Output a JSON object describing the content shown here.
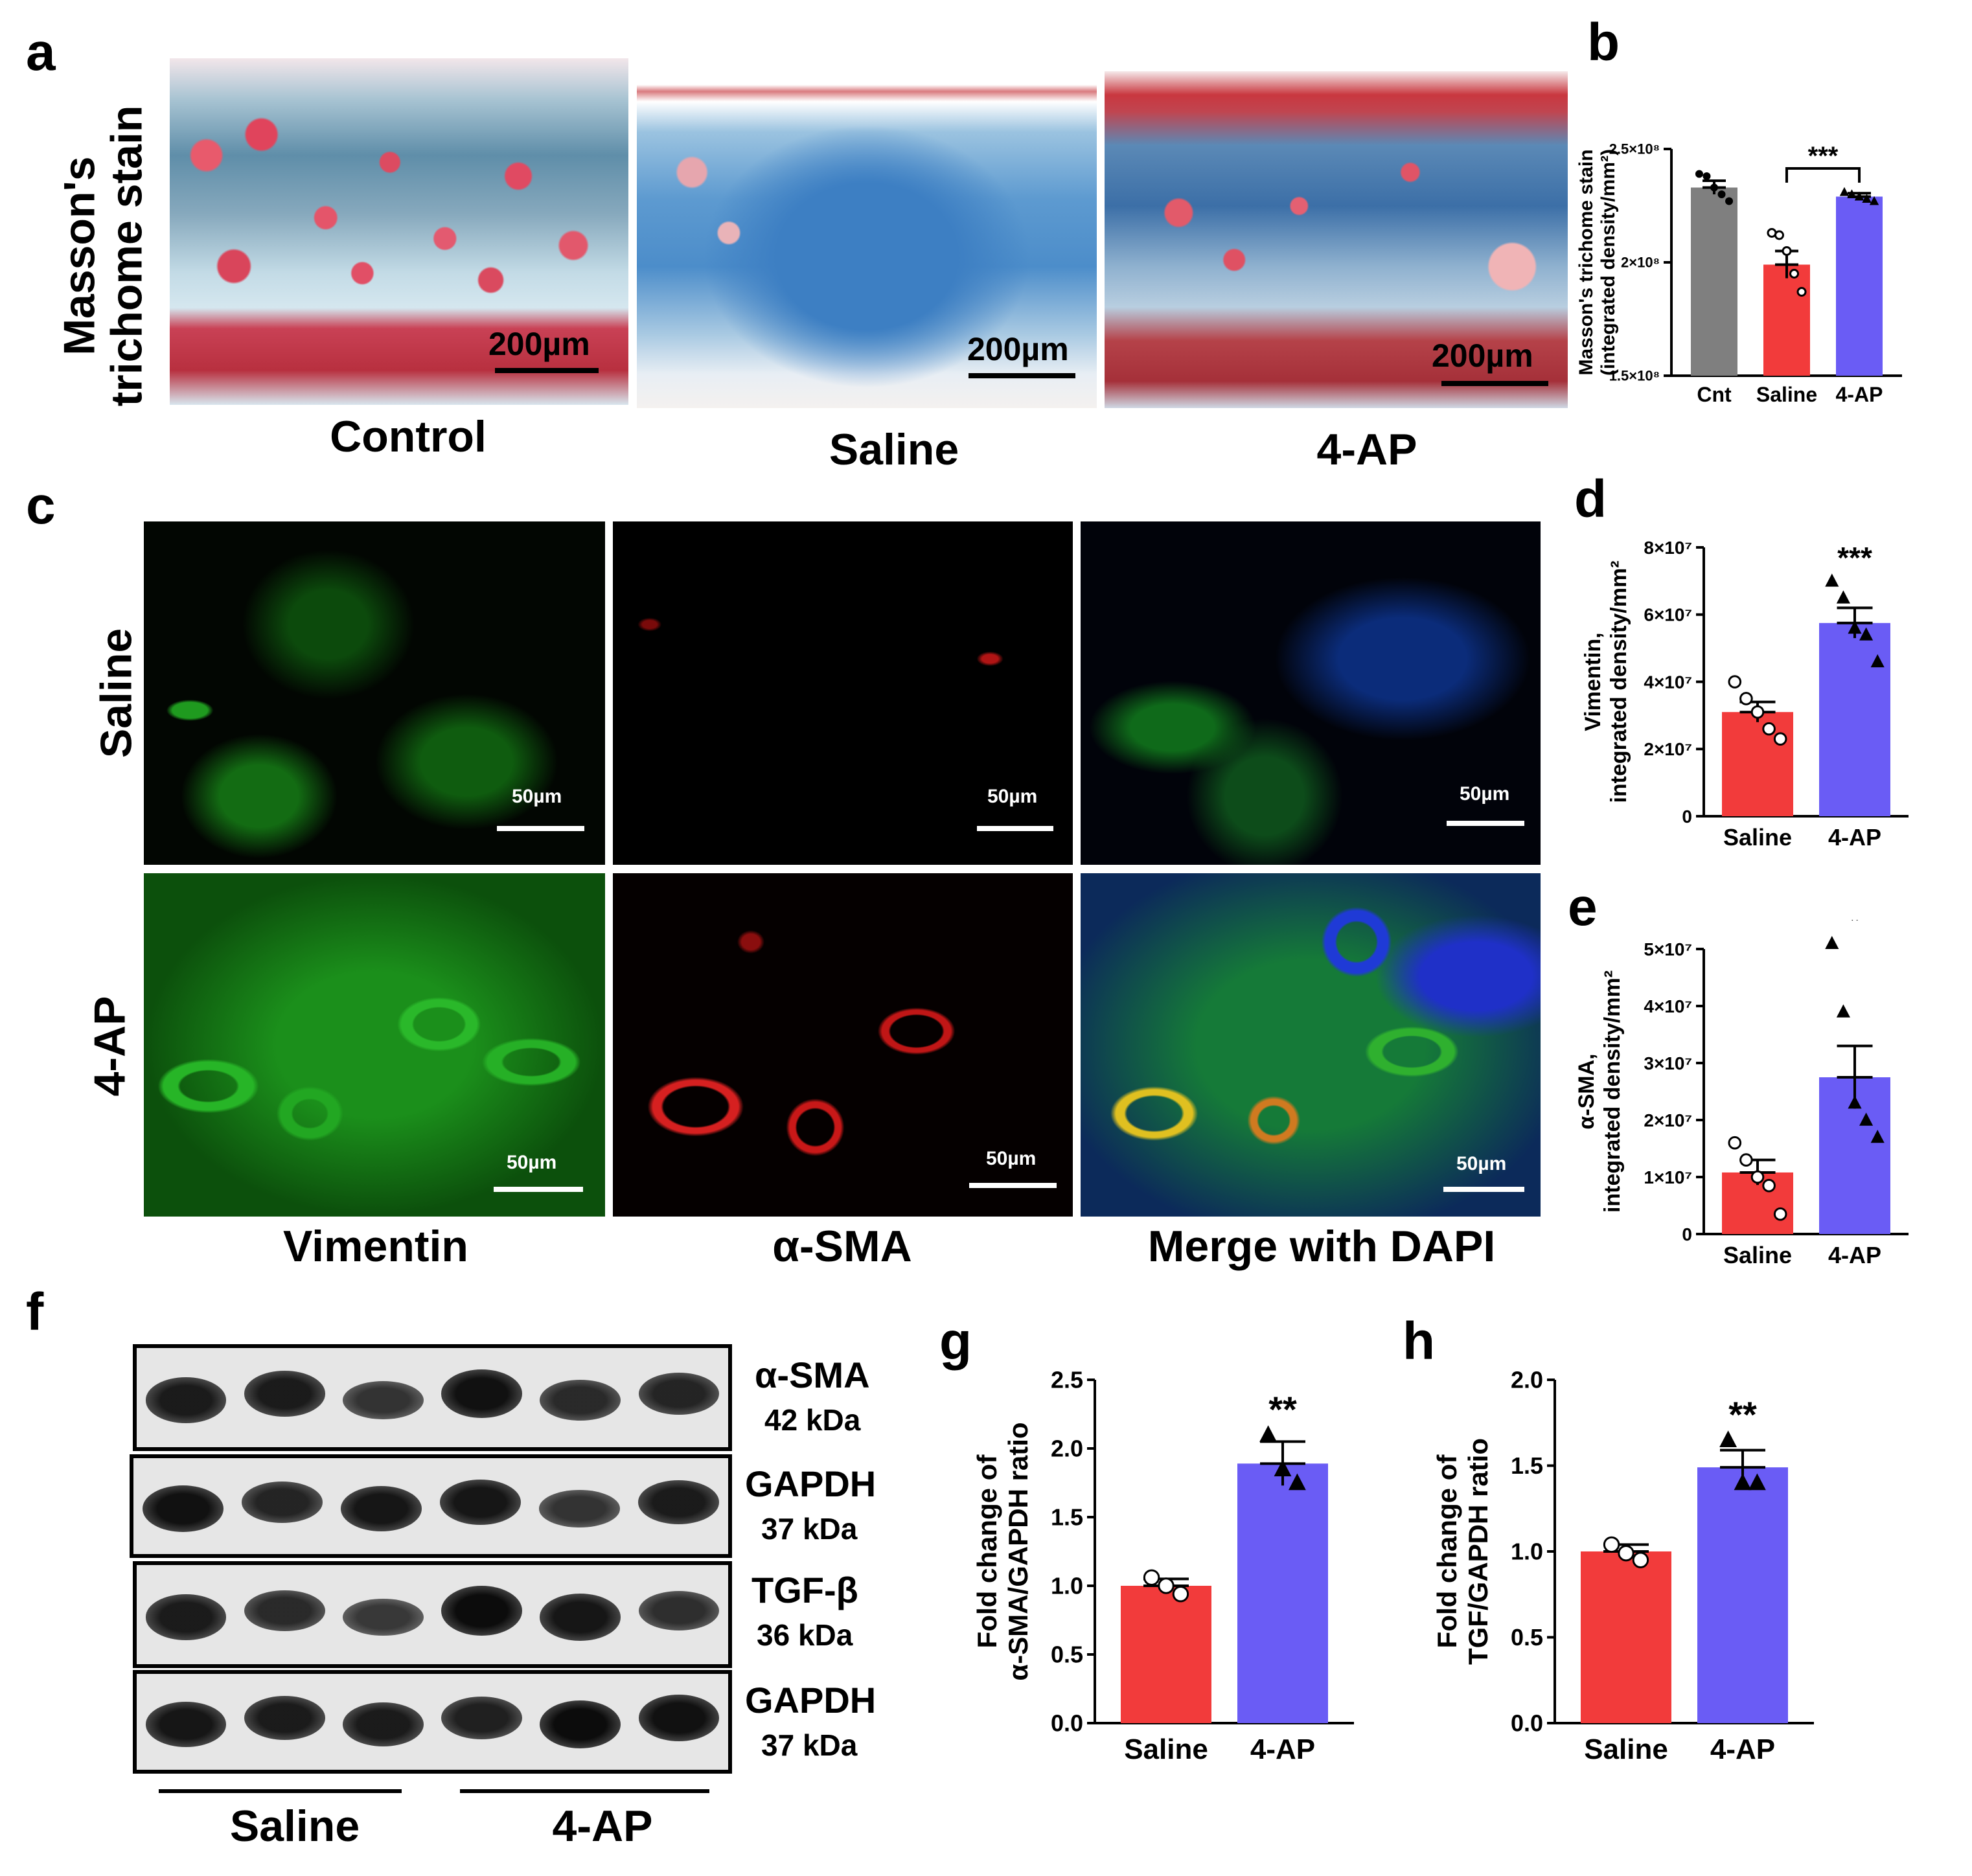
{
  "panel_letters": {
    "a": "a",
    "b": "b",
    "c": "c",
    "d": "d",
    "e": "e",
    "f": "f",
    "g": "g",
    "h": "h"
  },
  "panel_a": {
    "row_label": "Masson's\ntrichome stain",
    "row_label_line1": "Masson's",
    "row_label_line2": "trichome stain",
    "captions": [
      "Control",
      "Saline",
      "4-AP"
    ],
    "scale_text": "200µm"
  },
  "panel_c": {
    "row_labels": [
      "Saline",
      "4-AP"
    ],
    "col_captions": [
      "Vimentin",
      "α-SMA",
      "Merge with DAPI"
    ],
    "scale_text": "50µm"
  },
  "panel_f": {
    "bands": [
      {
        "name": "α-SMA",
        "kda": "42 kDa"
      },
      {
        "name": "GAPDH",
        "kda": "37 kDa"
      },
      {
        "name": "TGF-β",
        "kda": "36 kDa"
      },
      {
        "name": "GAPDH",
        "kda": "37 kDa"
      }
    ],
    "group_labels": [
      "Saline",
      "4-AP"
    ],
    "lane_intensity": [
      [
        0.85,
        0.85,
        0.6,
        0.95,
        0.7,
        0.75
      ],
      [
        0.95,
        0.75,
        0.9,
        0.9,
        0.6,
        0.85
      ],
      [
        0.85,
        0.7,
        0.55,
        1.0,
        0.9,
        0.65
      ],
      [
        0.9,
        0.85,
        0.85,
        0.8,
        1.0,
        0.95
      ]
    ]
  },
  "colors": {
    "saline": "#f23b3b",
    "fourap": "#6a5cf5",
    "control": "#7f7f7f"
  },
  "chart_data": [
    {
      "id": "b",
      "type": "bar",
      "ylabel_line1": "Masson's trichome stain",
      "ylabel_line2": "(integrated density/mm²)",
      "categories": [
        "Cnt",
        "Saline",
        "4-AP"
      ],
      "values": [
        233000000.0,
        199000000.0,
        229000000.0
      ],
      "errors": [
        3000000.0,
        6000000.0,
        1500000.0
      ],
      "ylim": [
        150000000.0,
        250000000.0
      ],
      "ytick_labels": [
        "1.5×10⁸",
        "2×10⁸",
        "2.5×10⁸"
      ],
      "ytick_values": [
        150000000.0,
        200000000.0,
        250000000.0
      ],
      "colors": [
        "#7f7f7f",
        "#f23b3b",
        "#6a5cf5"
      ],
      "markers": [
        "dot",
        "circle",
        "triangle"
      ],
      "points": [
        [
          239000000.0,
          238000000.0,
          233000000.0,
          230000000.0,
          227000000.0
        ],
        [
          213000000.0,
          212000000.0,
          205000000.0,
          195000000.0,
          187000000.0
        ],
        [
          231000000.0,
          230000000.0,
          229000000.0,
          228000000.0,
          227000000.0
        ]
      ],
      "significance": "***",
      "sig_bracket": [
        1,
        2
      ]
    },
    {
      "id": "d",
      "type": "bar",
      "ylabel_line1": "Vimentin,",
      "ylabel_line2": "integrated density/mm²",
      "categories": [
        "Saline",
        "4-AP"
      ],
      "values": [
        31000000.0,
        57500000.0
      ],
      "errors": [
        3000000.0,
        4500000.0
      ],
      "ylim": [
        0,
        80000000.0
      ],
      "ytick_labels": [
        "0",
        "2×10⁷",
        "4×10⁷",
        "6×10⁷",
        "8×10⁷"
      ],
      "ytick_values": [
        0,
        20000000.0,
        40000000.0,
        60000000.0,
        80000000.0
      ],
      "colors": [
        "#f23b3b",
        "#6a5cf5"
      ],
      "markers": [
        "circle",
        "triangle"
      ],
      "points": [
        [
          40000000.0,
          35000000.0,
          31000000.0,
          26000000.0,
          23000000.0
        ],
        [
          70000000.0,
          65000000.0,
          56000000.0,
          54000000.0,
          46000000.0
        ]
      ],
      "significance": "***"
    },
    {
      "id": "e",
      "type": "bar",
      "ylabel_line1": "α-SMA,",
      "ylabel_line2": "integrated density/mm²",
      "categories": [
        "Saline",
        "4-AP"
      ],
      "values": [
        10800000.0,
        27500000.0
      ],
      "errors": [
        2200000.0,
        5500000.0
      ],
      "ylim": [
        0,
        50000000.0
      ],
      "ytick_labels": [
        "0",
        "1×10⁷",
        "2×10⁷",
        "3×10⁷",
        "4×10⁷",
        "5×10⁷"
      ],
      "ytick_values": [
        0,
        10000000.0,
        20000000.0,
        30000000.0,
        40000000.0,
        50000000.0
      ],
      "colors": [
        "#f23b3b",
        "#6a5cf5"
      ],
      "markers": [
        "circle",
        "triangle"
      ],
      "points": [
        [
          16000000.0,
          13000000.0,
          10000000.0,
          8500000.0,
          3500000.0
        ],
        [
          51000000.0,
          39000000.0,
          23000000.0,
          20000000.0,
          17000000.0
        ]
      ],
      "significance": "*"
    },
    {
      "id": "g",
      "type": "bar",
      "ylabel_line1": "Fold change of",
      "ylabel_line2": "α-SMA/GAPDH ratio",
      "categories": [
        "Saline",
        "4-AP"
      ],
      "values": [
        1.0,
        1.89
      ],
      "errors": [
        0.05,
        0.16
      ],
      "ylim": [
        0,
        2.5
      ],
      "ytick_labels": [
        "0.0",
        "0.5",
        "1.0",
        "1.5",
        "2.0",
        "2.5"
      ],
      "ytick_values": [
        0,
        0.5,
        1.0,
        1.5,
        2.0,
        2.5
      ],
      "colors": [
        "#f23b3b",
        "#6a5cf5"
      ],
      "markers": [
        "circle",
        "triangle"
      ],
      "points": [
        [
          1.06,
          1.0,
          0.94
        ],
        [
          2.1,
          1.85,
          1.75
        ]
      ],
      "significance": "**"
    },
    {
      "id": "h",
      "type": "bar",
      "ylabel_line1": "Fold change of",
      "ylabel_line2": "TGF/GAPDH ratio",
      "categories": [
        "Saline",
        "4-AP"
      ],
      "values": [
        1.0,
        1.49
      ],
      "errors": [
        0.04,
        0.1
      ],
      "ylim": [
        0,
        2.0
      ],
      "ytick_labels": [
        "0.0",
        "0.5",
        "1.0",
        "1.5",
        "2.0"
      ],
      "ytick_values": [
        0,
        0.5,
        1.0,
        1.5,
        2.0
      ],
      "colors": [
        "#f23b3b",
        "#6a5cf5"
      ],
      "markers": [
        "circle",
        "triangle"
      ],
      "points": [
        [
          1.04,
          0.99,
          0.95
        ],
        [
          1.65,
          1.4,
          1.4
        ]
      ],
      "significance": "**"
    }
  ]
}
